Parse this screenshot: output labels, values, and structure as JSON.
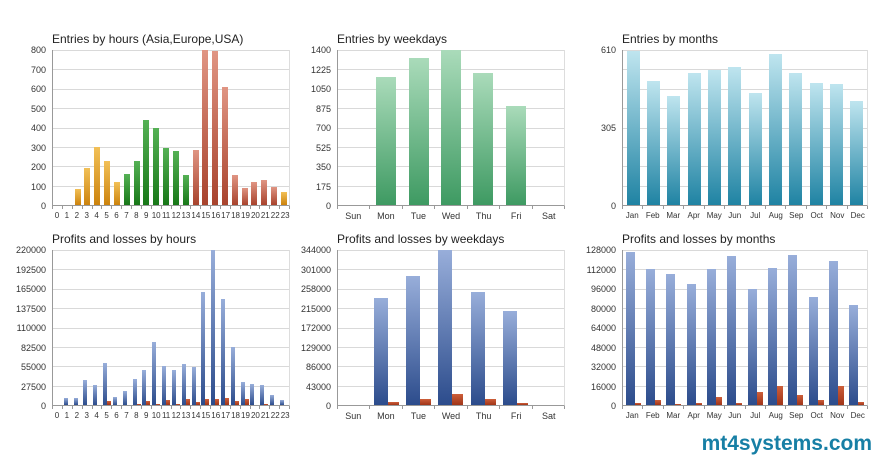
{
  "watermark": {
    "text": "mt4systems.com",
    "color": "#177fa5"
  },
  "palette": {
    "asia_orange": [
      "#f2c057",
      "#cc830d"
    ],
    "europe_green": [
      "#55b155",
      "#187818"
    ],
    "usa_red": [
      "#e09583",
      "#a8432d"
    ],
    "weekday_green": [
      "#aadbba",
      "#3e9a62"
    ],
    "month_teal": [
      "#bfe5ef",
      "#1f83a3"
    ],
    "profit_blue": [
      "#98aeda",
      "#2c4c8c"
    ],
    "loss_red": [
      "#cd5f3a",
      "#a03418"
    ]
  },
  "chart_data": [
    {
      "type": "bar",
      "title": "Entries by hours (Asia,Europe,USA)",
      "categories": [
        "0",
        "1",
        "2",
        "3",
        "4",
        "5",
        "6",
        "7",
        "8",
        "9",
        "10",
        "11",
        "12",
        "13",
        "14",
        "15",
        "16",
        "17",
        "18",
        "19",
        "20",
        "21",
        "22",
        "23"
      ],
      "series": [
        {
          "name": "Entries",
          "values": [
            0,
            0,
            85,
            190,
            300,
            225,
            120,
            160,
            225,
            440,
            400,
            295,
            280,
            155,
            285,
            800,
            795,
            610,
            155,
            90,
            120,
            130,
            95,
            65
          ]
        }
      ],
      "bar_colors": [
        "asia_orange",
        "asia_orange",
        "asia_orange",
        "asia_orange",
        "asia_orange",
        "asia_orange",
        "asia_orange",
        "europe_green",
        "europe_green",
        "europe_green",
        "europe_green",
        "europe_green",
        "europe_green",
        "europe_green",
        "usa_red",
        "usa_red",
        "usa_red",
        "usa_red",
        "usa_red",
        "usa_red",
        "usa_red",
        "usa_red",
        "usa_red",
        "asia_orange"
      ],
      "ylim": [
        0,
        800
      ],
      "y_ticks": [
        [
          0,
          "0"
        ],
        [
          100,
          "100"
        ],
        [
          200,
          "200"
        ],
        [
          300,
          "300"
        ],
        [
          400,
          "400"
        ],
        [
          500,
          "500"
        ],
        [
          600,
          "600"
        ],
        [
          700,
          "700"
        ],
        [
          800,
          "800"
        ]
      ],
      "grid": true,
      "legend": "none"
    },
    {
      "type": "bar",
      "title": "Entries by weekdays",
      "categories": [
        "Sun",
        "Mon",
        "Tue",
        "Wed",
        "Thu",
        "Fri",
        "Sat"
      ],
      "series": [
        {
          "name": "Entries",
          "color": "weekday_green",
          "values": [
            0,
            1160,
            1330,
            1400,
            1190,
            890,
            0
          ]
        }
      ],
      "ylim": [
        0,
        1400
      ],
      "y_ticks": [
        [
          0,
          "0"
        ],
        [
          175,
          "175"
        ],
        [
          350,
          "350"
        ],
        [
          525,
          "525"
        ],
        [
          700,
          "700"
        ],
        [
          875,
          "875"
        ],
        [
          1050,
          "1050"
        ],
        [
          1225,
          "1225"
        ],
        [
          1400,
          "1400"
        ]
      ],
      "grid": true,
      "legend": "none"
    },
    {
      "type": "bar",
      "title": "Entries by months",
      "categories": [
        "Jan",
        "Feb",
        "Mar",
        "Apr",
        "May",
        "Jun",
        "Jul",
        "Aug",
        "Sep",
        "Oct",
        "Nov",
        "Dec"
      ],
      "series": [
        {
          "name": "Entries",
          "color": "month_teal",
          "values": [
            605,
            490,
            430,
            520,
            530,
            545,
            440,
            595,
            520,
            480,
            478,
            410
          ]
        }
      ],
      "ylim": [
        0,
        610
      ],
      "y_ticks": [
        [
          0,
          "0"
        ],
        [
          76.25,
          ""
        ],
        [
          152.5,
          ""
        ],
        [
          228.75,
          ""
        ],
        [
          305,
          "305"
        ],
        [
          381.25,
          ""
        ],
        [
          457.5,
          ""
        ],
        [
          533.75,
          ""
        ],
        [
          610,
          "610"
        ]
      ],
      "grid": true,
      "legend": "none"
    },
    {
      "type": "bar",
      "title": "Profits and losses by hours",
      "categories": [
        "0",
        "1",
        "2",
        "3",
        "4",
        "5",
        "6",
        "7",
        "8",
        "9",
        "10",
        "11",
        "12",
        "13",
        "14",
        "15",
        "16",
        "17",
        "18",
        "19",
        "20",
        "21",
        "22",
        "23"
      ],
      "series": [
        {
          "name": "Profit",
          "color": "profit_blue",
          "values": [
            0,
            10000,
            10000,
            35000,
            28000,
            59000,
            12000,
            20000,
            37000,
            49000,
            90000,
            56000,
            50000,
            58000,
            54000,
            161000,
            220000,
            151000,
            83000,
            33000,
            30000,
            29000,
            14000,
            7000
          ]
        },
        {
          "name": "Loss",
          "color": "loss_red",
          "values": [
            0,
            0,
            0,
            0,
            0,
            5000,
            0,
            0,
            1500,
            6000,
            1500,
            6500,
            1500,
            8000,
            4000,
            9000,
            8000,
            10500,
            5000,
            8000,
            0,
            1500,
            0,
            0
          ]
        }
      ],
      "ylim": [
        0,
        220000
      ],
      "y_ticks": [
        [
          0,
          "0"
        ],
        [
          27500,
          "27500"
        ],
        [
          55000,
          "55000"
        ],
        [
          82500,
          "82500"
        ],
        [
          110000,
          "110000"
        ],
        [
          137500,
          "137500"
        ],
        [
          165000,
          "165000"
        ],
        [
          192500,
          "192500"
        ],
        [
          220000,
          "220000"
        ]
      ],
      "grid": true,
      "legend": "none"
    },
    {
      "type": "bar",
      "title": "Profits and losses by weekdays",
      "categories": [
        "Sun",
        "Mon",
        "Tue",
        "Wed",
        "Thu",
        "Fri",
        "Sat"
      ],
      "series": [
        {
          "name": "Profit",
          "color": "profit_blue",
          "values": [
            0,
            238000,
            287000,
            344000,
            250000,
            208000,
            0
          ]
        },
        {
          "name": "Loss",
          "color": "loss_red",
          "values": [
            0,
            7000,
            14000,
            24000,
            13000,
            3500,
            0
          ]
        }
      ],
      "ylim": [
        0,
        344000
      ],
      "y_ticks": [
        [
          0,
          "0"
        ],
        [
          43000,
          "43000"
        ],
        [
          86000,
          "86000"
        ],
        [
          129000,
          "129000"
        ],
        [
          172000,
          "172000"
        ],
        [
          215000,
          "215000"
        ],
        [
          258000,
          "258000"
        ],
        [
          301000,
          "301000"
        ],
        [
          344000,
          "344000"
        ]
      ],
      "grid": true,
      "legend": "none"
    },
    {
      "type": "bar",
      "title": "Profits and losses by months",
      "categories": [
        "Jan",
        "Feb",
        "Mar",
        "Apr",
        "May",
        "Jun",
        "Jul",
        "Aug",
        "Sep",
        "Oct",
        "Nov",
        "Dec"
      ],
      "series": [
        {
          "name": "Profit",
          "color": "profit_blue",
          "values": [
            126000,
            112000,
            108000,
            100000,
            112000,
            123000,
            96000,
            113000,
            124000,
            89000,
            119000,
            83000
          ]
        },
        {
          "name": "Loss",
          "color": "loss_red",
          "values": [
            1500,
            4500,
            800,
            1500,
            7000,
            2000,
            11000,
            16000,
            8000,
            4500,
            16000,
            2500
          ]
        }
      ],
      "ylim": [
        0,
        128000
      ],
      "y_ticks": [
        [
          0,
          "0"
        ],
        [
          16000,
          "16000"
        ],
        [
          32000,
          "32000"
        ],
        [
          48000,
          "48000"
        ],
        [
          64000,
          "64000"
        ],
        [
          80000,
          "80000"
        ],
        [
          96000,
          "96000"
        ],
        [
          112000,
          "112000"
        ],
        [
          128000,
          "128000"
        ]
      ],
      "grid": true,
      "legend": "none"
    }
  ]
}
